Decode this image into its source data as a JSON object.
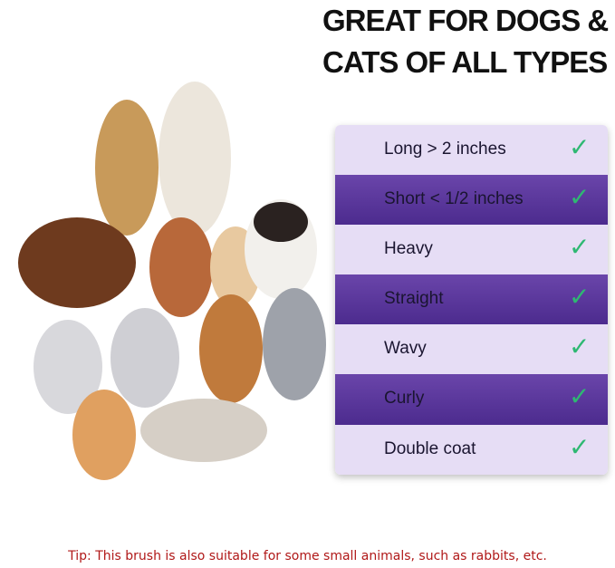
{
  "heading": {
    "line1": "GREAT FOR DOGS &",
    "line2": "CATS OF ALL TYPES"
  },
  "coat_types": [
    {
      "label": "Long > 2 inches",
      "checked": true
    },
    {
      "label": "Short < 1/2 inches",
      "checked": true
    },
    {
      "label": "Heavy",
      "checked": true
    },
    {
      "label": "Straight",
      "checked": true
    },
    {
      "label": "Wavy",
      "checked": true
    },
    {
      "label": "Curly",
      "checked": true
    },
    {
      "label": "Double coat",
      "checked": true
    }
  ],
  "check_icon": "checkmark-icon",
  "colors": {
    "light_row": "#e6ddf5",
    "dark_row": "#5a37a0",
    "check": "#2eb872",
    "tip": "#b01818"
  },
  "tip": "Tip: This brush is also suitable for some small animals, such as rabbits, etc."
}
